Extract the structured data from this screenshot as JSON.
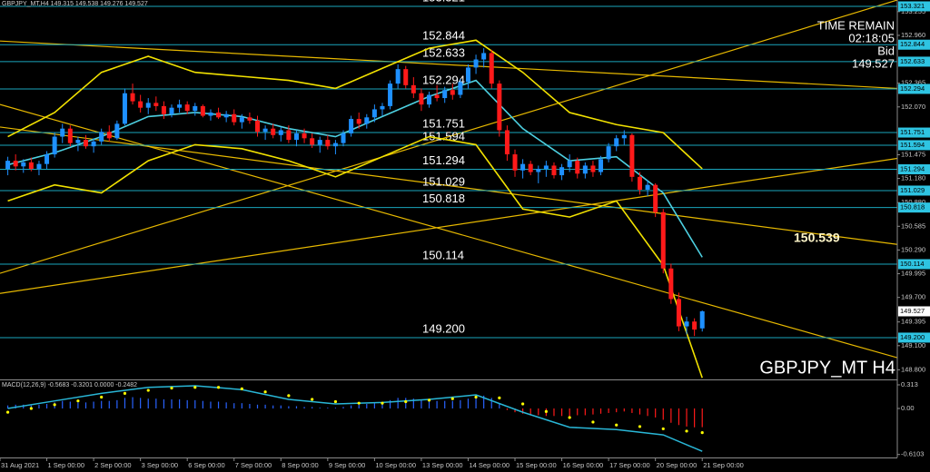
{
  "chart_data": [
    {
      "type": "candlestick",
      "title": "GBPJPY_MT,H4  149.315 149.538 149.276 149.527",
      "watermark": "GBPJPY_MT H4",
      "info": {
        "label": "TIME REMAIN",
        "time": "02:18:05",
        "bid_label": "Bid"
      },
      "price_label": 150.539,
      "bull_color": "#1e90ff",
      "bear_color": "#ff1a1a",
      "level_color": "#1aa6bd",
      "xlim": [
        -1,
        114
      ],
      "xticks": [
        {
          "value": -1,
          "label": "31 Aug 2021"
        },
        {
          "value": 5,
          "label": "1 Sep 00:00"
        },
        {
          "value": 11,
          "label": "2 Sep 00:00"
        },
        {
          "value": 17,
          "label": "3 Sep 00:00"
        },
        {
          "value": 23,
          "label": "6 Sep 00:00"
        },
        {
          "value": 29,
          "label": "7 Sep 00:00"
        },
        {
          "value": 35,
          "label": "8 Sep 00:00"
        },
        {
          "value": 41,
          "label": "9 Sep 00:00"
        },
        {
          "value": 47,
          "label": "10 Sep 00:00"
        },
        {
          "value": 53,
          "label": "13 Sep 00:00"
        },
        {
          "value": 59,
          "label": "14 Sep 00:00"
        },
        {
          "value": 65,
          "label": "15 Sep 00:00"
        },
        {
          "value": 71,
          "label": "16 Sep 00:00"
        },
        {
          "value": 77,
          "label": "17 Sep 00:00"
        },
        {
          "value": 83,
          "label": "20 Sep 00:00"
        },
        {
          "value": 89,
          "label": "21 Sep 00:00"
        }
      ],
      "ylim": [
        148.68,
        153.4
      ],
      "yticks": [
        153.255,
        {
          "value": 152.96,
          "label": "152.960"
        },
        152.365,
        {
          "value": 152.07,
          "label": "152.070"
        },
        151.475,
        {
          "value": 151.18,
          "label": "151.180"
        },
        {
          "value": 150.88,
          "label": "150.880"
        },
        150.585,
        {
          "value": 150.29,
          "label": "150.290"
        },
        149.995,
        {
          "value": 149.7,
          "label": "149.700"
        },
        149.395,
        {
          "value": 149.1,
          "label": "149.100"
        },
        {
          "value": 148.8,
          "label": "148.800"
        }
      ],
      "levels": [
        153.321,
        152.844,
        152.633,
        152.294,
        151.751,
        151.594,
        151.294,
        151.029,
        150.818,
        150.114,
        {
          "value": 149.2,
          "label": "149.200"
        }
      ],
      "ohlc": [
        [
          151.3,
          151.45,
          151.22,
          151.4
        ],
        [
          151.4,
          151.48,
          151.28,
          151.33
        ],
        [
          151.33,
          151.42,
          151.25,
          151.38
        ],
        [
          151.38,
          151.44,
          151.27,
          151.3
        ],
        [
          151.3,
          151.4,
          151.22,
          151.36
        ],
        [
          151.36,
          151.52,
          151.3,
          151.48
        ],
        [
          151.48,
          151.75,
          151.44,
          151.7
        ],
        [
          151.7,
          151.86,
          151.62,
          151.8
        ],
        [
          151.8,
          151.84,
          151.58,
          151.62
        ],
        [
          151.62,
          151.7,
          151.52,
          151.66
        ],
        [
          151.66,
          151.72,
          151.55,
          151.58
        ],
        [
          151.58,
          151.68,
          151.5,
          151.64
        ],
        [
          151.64,
          151.8,
          151.6,
          151.76
        ],
        [
          151.76,
          151.84,
          151.64,
          151.68
        ],
        [
          151.68,
          151.9,
          151.66,
          151.86
        ],
        [
          151.86,
          152.3,
          151.84,
          152.24
        ],
        [
          152.24,
          152.36,
          152.1,
          152.14
        ],
        [
          152.14,
          152.22,
          152.0,
          152.06
        ],
        [
          152.06,
          152.18,
          151.98,
          152.12
        ],
        [
          152.12,
          152.2,
          152.02,
          152.08
        ],
        [
          152.08,
          152.14,
          151.92,
          151.98
        ],
        [
          151.98,
          152.1,
          151.94,
          152.06
        ],
        [
          152.06,
          152.16,
          152.0,
          152.1
        ],
        [
          152.1,
          152.14,
          151.98,
          152.02
        ],
        [
          152.02,
          152.12,
          151.96,
          152.08
        ],
        [
          152.08,
          152.1,
          151.94,
          151.96
        ],
        [
          151.96,
          152.04,
          151.9,
          152.0
        ],
        [
          152.0,
          152.06,
          151.92,
          151.94
        ],
        [
          151.94,
          152.02,
          151.88,
          151.98
        ],
        [
          151.98,
          152.04,
          151.84,
          151.88
        ],
        [
          151.88,
          151.98,
          151.8,
          151.94
        ],
        [
          151.94,
          152.0,
          151.86,
          151.9
        ],
        [
          151.9,
          151.96,
          151.7,
          151.76
        ],
        [
          151.76,
          151.84,
          151.66,
          151.8
        ],
        [
          151.8,
          151.86,
          151.68,
          151.72
        ],
        [
          151.72,
          151.82,
          151.64,
          151.78
        ],
        [
          151.78,
          151.84,
          151.62,
          151.66
        ],
        [
          151.66,
          151.78,
          151.58,
          151.74
        ],
        [
          151.74,
          151.8,
          151.62,
          151.68
        ],
        [
          151.68,
          151.74,
          151.56,
          151.6
        ],
        [
          151.6,
          151.7,
          151.5,
          151.66
        ],
        [
          151.66,
          151.72,
          151.54,
          151.58
        ],
        [
          151.58,
          151.66,
          151.48,
          151.62
        ],
        [
          151.62,
          151.78,
          151.58,
          151.74
        ],
        [
          151.74,
          151.96,
          151.7,
          151.92
        ],
        [
          151.92,
          152.0,
          151.8,
          151.86
        ],
        [
          151.86,
          151.98,
          151.8,
          151.94
        ],
        [
          151.94,
          152.1,
          151.88,
          152.04
        ],
        [
          152.04,
          152.12,
          151.96,
          152.08
        ],
        [
          152.08,
          152.4,
          152.04,
          152.36
        ],
        [
          152.36,
          152.6,
          152.3,
          152.54
        ],
        [
          152.54,
          152.58,
          152.3,
          152.34
        ],
        [
          152.34,
          152.44,
          152.18,
          152.24
        ],
        [
          152.24,
          152.3,
          152.02,
          152.1
        ],
        [
          152.1,
          152.26,
          152.06,
          152.22
        ],
        [
          152.22,
          152.34,
          152.14,
          152.18
        ],
        [
          152.18,
          152.32,
          152.12,
          152.28
        ],
        [
          152.28,
          152.36,
          152.16,
          152.22
        ],
        [
          152.22,
          152.42,
          152.18,
          152.38
        ],
        [
          152.38,
          152.6,
          152.3,
          152.56
        ],
        [
          152.56,
          152.72,
          152.48,
          152.66
        ],
        [
          152.66,
          152.8,
          152.56,
          152.74
        ],
        [
          152.74,
          152.78,
          152.3,
          152.36
        ],
        [
          152.36,
          152.4,
          151.7,
          151.78
        ],
        [
          151.78,
          151.84,
          151.4,
          151.48
        ],
        [
          151.48,
          151.54,
          151.2,
          151.28
        ],
        [
          151.28,
          151.42,
          151.18,
          151.36
        ],
        [
          151.36,
          151.4,
          151.22,
          151.26
        ],
        [
          151.26,
          151.34,
          151.12,
          151.3
        ],
        [
          151.3,
          151.4,
          151.2,
          151.34
        ],
        [
          151.34,
          151.38,
          151.18,
          151.22
        ],
        [
          151.22,
          151.36,
          151.16,
          151.32
        ],
        [
          151.32,
          151.48,
          151.26,
          151.4
        ],
        [
          151.4,
          151.44,
          151.18,
          151.24
        ],
        [
          151.24,
          151.38,
          151.18,
          151.34
        ],
        [
          151.34,
          151.4,
          151.2,
          151.26
        ],
        [
          151.26,
          151.46,
          151.22,
          151.42
        ],
        [
          151.42,
          151.62,
          151.38,
          151.58
        ],
        [
          151.58,
          151.72,
          151.52,
          151.68
        ],
        [
          151.68,
          151.78,
          151.6,
          151.72
        ],
        [
          151.72,
          151.74,
          151.14,
          151.2
        ],
        [
          151.2,
          151.26,
          150.98,
          151.04
        ],
        [
          151.04,
          151.16,
          150.96,
          151.1
        ],
        [
          151.1,
          151.12,
          150.7,
          150.76
        ],
        [
          150.76,
          150.8,
          150.0,
          150.06
        ],
        [
          150.06,
          150.12,
          149.62,
          149.68
        ],
        [
          149.68,
          149.76,
          149.28,
          149.34
        ],
        [
          149.34,
          149.46,
          149.24,
          149.4
        ],
        [
          149.4,
          149.44,
          149.22,
          149.3
        ],
        [
          149.315,
          149.538,
          149.276,
          149.527
        ]
      ],
      "bands": [
        {
          "color": "#f2e200",
          "x": [
            0,
            6,
            12,
            18,
            24,
            30,
            36,
            42,
            48,
            54,
            60,
            66,
            72,
            78,
            84,
            89
          ],
          "values": [
            151.7,
            152.0,
            152.5,
            152.7,
            152.5,
            152.45,
            152.4,
            152.3,
            152.55,
            152.8,
            152.9,
            152.5,
            152.0,
            151.85,
            151.75,
            151.3
          ]
        },
        {
          "color": "#4dd0e1",
          "x": [
            0,
            6,
            12,
            18,
            24,
            30,
            36,
            42,
            48,
            54,
            60,
            66,
            72,
            78,
            84,
            89
          ],
          "values": [
            151.35,
            151.5,
            151.7,
            151.95,
            152.0,
            151.95,
            151.8,
            151.7,
            151.95,
            152.2,
            152.4,
            151.8,
            151.4,
            151.45,
            151.0,
            150.2
          ]
        },
        {
          "color": "#f2e200",
          "x": [
            0,
            6,
            12,
            18,
            24,
            30,
            36,
            42,
            48,
            54,
            60,
            66,
            72,
            78,
            84,
            89
          ],
          "values": [
            150.9,
            151.1,
            151.0,
            151.4,
            151.6,
            151.55,
            151.4,
            151.2,
            151.45,
            151.7,
            151.6,
            150.8,
            150.7,
            150.9,
            150.1,
            148.7
          ]
        }
      ],
      "trendlines": [
        {
          "color": "#e6b800",
          "x": [
            -1,
            114
          ],
          "values": [
            152.89,
            152.3
          ]
        },
        {
          "color": "#e6b800",
          "x": [
            -1,
            114
          ],
          "values": [
            149.75,
            151.43
          ]
        },
        {
          "color": "#e6b800",
          "x": [
            -1,
            114
          ],
          "values": [
            152.1,
            148.95
          ]
        },
        {
          "color": "#e6b800",
          "x": [
            -1,
            114
          ],
          "values": [
            150.0,
            153.4
          ]
        },
        {
          "color": "#e6b800",
          "x": [
            -1,
            114
          ],
          "values": [
            151.82,
            150.36
          ]
        }
      ]
    },
    {
      "type": "macd",
      "title": "MACD(12,26,9) -0.5683 -0.3201 0.0000 -0.2482",
      "ylim": [
        -0.65,
        0.385
      ],
      "yticks": [
        0.313,
        {
          "value": 0,
          "label": "0.00"
        },
        -0.6103
      ],
      "histogram": {
        "pos_color": "#2962ff",
        "neg_color": "#ff1a1a",
        "values": [
          0.04,
          0.05,
          0.05,
          0.04,
          0.05,
          0.06,
          0.08,
          0.1,
          0.09,
          0.08,
          0.08,
          0.09,
          0.1,
          0.1,
          0.11,
          0.14,
          0.15,
          0.14,
          0.13,
          0.13,
          0.12,
          0.12,
          0.12,
          0.11,
          0.11,
          0.1,
          0.09,
          0.09,
          0.08,
          0.07,
          0.07,
          0.06,
          0.05,
          0.05,
          0.04,
          0.04,
          0.03,
          0.03,
          0.02,
          0.02,
          0.01,
          0.01,
          0.01,
          0.02,
          0.04,
          0.05,
          0.06,
          0.07,
          0.08,
          0.11,
          0.14,
          0.14,
          0.13,
          0.11,
          0.11,
          0.1,
          0.1,
          0.1,
          0.11,
          0.13,
          0.15,
          0.17,
          0.14,
          0.06,
          -0.02,
          -0.05,
          -0.07,
          -0.08,
          -0.09,
          -0.1,
          -0.1,
          -0.1,
          -0.1,
          -0.09,
          -0.09,
          -0.08,
          -0.07,
          -0.06,
          -0.05,
          -0.04,
          -0.06,
          -0.08,
          -0.1,
          -0.12,
          -0.15,
          -0.19,
          -0.22,
          -0.24,
          -0.25,
          -0.2482
        ]
      },
      "main": {
        "color": "#29b6d6",
        "x": [
          0,
          6,
          12,
          18,
          24,
          30,
          36,
          42,
          48,
          54,
          60,
          66,
          72,
          78,
          84,
          89
        ],
        "values": [
          0.0,
          0.1,
          0.2,
          0.28,
          0.3,
          0.25,
          0.12,
          0.06,
          0.08,
          0.12,
          0.18,
          -0.05,
          -0.25,
          -0.28,
          -0.35,
          -0.5683
        ]
      },
      "signal": {
        "color": "#ffff00",
        "x": [
          0,
          3,
          6,
          9,
          12,
          15,
          18,
          21,
          24,
          27,
          30,
          33,
          36,
          39,
          42,
          45,
          48,
          51,
          54,
          57,
          60,
          63,
          66,
          69,
          72,
          75,
          78,
          81,
          84,
          87,
          89
        ],
        "values": [
          -0.05,
          0.0,
          0.05,
          0.1,
          0.15,
          0.2,
          0.24,
          0.27,
          0.28,
          0.28,
          0.26,
          0.22,
          0.17,
          0.12,
          0.09,
          0.07,
          0.07,
          0.09,
          0.11,
          0.13,
          0.15,
          0.14,
          0.06,
          -0.04,
          -0.12,
          -0.18,
          -0.22,
          -0.24,
          -0.27,
          -0.3,
          -0.3201
        ]
      }
    }
  ]
}
